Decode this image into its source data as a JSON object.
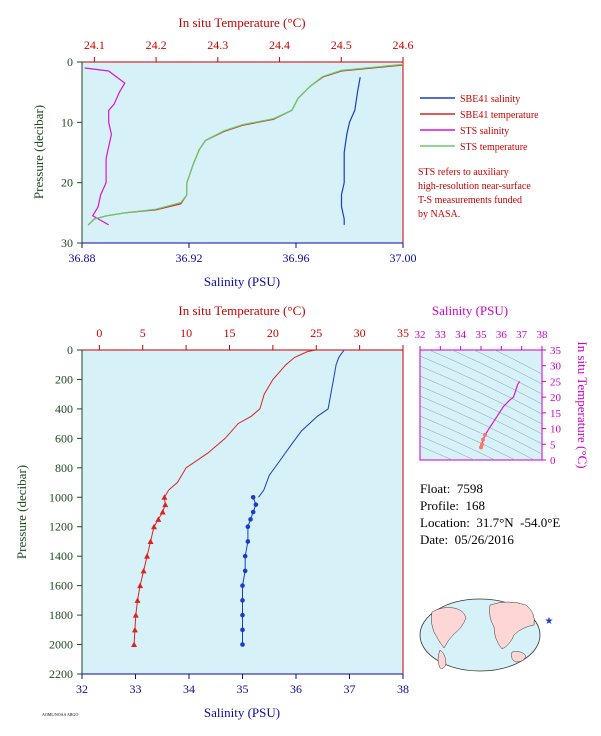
{
  "colors": {
    "plot_bg": "#d6f1f8",
    "temp_axis": "#cc0000",
    "sal_axis": "#0a0aa0",
    "pressure_label": "#1e4a1e",
    "ts_axis": "#cc00cc",
    "sbe_sal": "#1c3cc8",
    "sbe_temp": "#dd2222",
    "sts_sal": "#dd11dd",
    "sts_temp": "#66cc66"
  },
  "top": {
    "temp_title": "In situ Temperature (°C)",
    "sal_title": "Salinity (PSU)",
    "pressure_title": "Pressure (decibar)",
    "temp_ticks": [
      "24.1",
      "24.2",
      "24.3",
      "24.4",
      "24.5",
      "24.6"
    ],
    "sal_ticks": [
      "36.88",
      "36.92",
      "36.96",
      "37.00"
    ],
    "pressure_ticks": [
      "0",
      "10",
      "20",
      "30"
    ],
    "legend": [
      "SBE41 salinity",
      "SBE41 temperature",
      "STS salinity",
      "STS temperature"
    ],
    "note": [
      "STS refers to auxiliary",
      "high-resolution near-surface",
      "T-S measurements funded",
      "by NASA."
    ]
  },
  "bottom": {
    "temp_title": "In situ Temperature (°C)",
    "sal_title": "Salinity (PSU)",
    "pressure_title": "Pressure (decibar)",
    "temp_ticks": [
      "0",
      "5",
      "10",
      "15",
      "20",
      "25",
      "30",
      "35"
    ],
    "sal_ticks": [
      "32",
      "33",
      "34",
      "35",
      "36",
      "37",
      "38"
    ],
    "pressure_ticks": [
      "0",
      "200",
      "400",
      "600",
      "800",
      "1000",
      "1200",
      "1400",
      "1600",
      "1800",
      "2000",
      "2200"
    ]
  },
  "ts_inset": {
    "sal_title": "Salinity (PSU)",
    "temp_title": "In situ Temperature (°C)",
    "sal_ticks": [
      "32",
      "33",
      "34",
      "35",
      "36",
      "37",
      "38"
    ],
    "temp_ticks": [
      "0",
      "5",
      "10",
      "15",
      "20",
      "25",
      "30",
      "35"
    ]
  },
  "info": {
    "float": "Float:  7598",
    "profile": "Profile:  168",
    "location": "Location:  31.7°N  -54.0°E",
    "date": "Date:  05/26/2016"
  },
  "footer_tiny": "AOML/NOAA ARGO",
  "chart_data": [
    {
      "type": "line",
      "title": "",
      "ylabel": "Pressure (decibar)",
      "xlabel_top": "In situ Temperature (°C)",
      "xlabel_bottom": "Salinity (PSU)",
      "ylim": [
        30,
        0
      ],
      "temp_lim": [
        24.08,
        24.6
      ],
      "sal_lim": [
        36.88,
        37.0
      ],
      "series": [
        {
          "name": "SBE41 salinity",
          "axis": "salinity",
          "points": [
            [
              36.984,
              2.5
            ],
            [
              36.983,
              5
            ],
            [
              36.982,
              8
            ],
            [
              36.98,
              10
            ],
            [
              36.979,
              12
            ],
            [
              36.978,
              15
            ],
            [
              36.978,
              18
            ],
            [
              36.978,
              20
            ],
            [
              36.977,
              22
            ],
            [
              36.977,
              24
            ],
            [
              36.978,
              26
            ],
            [
              36.978,
              27
            ]
          ]
        },
        {
          "name": "SBE41 temperature",
          "axis": "temperature",
          "points": [
            [
              24.6,
              0.5
            ],
            [
              24.5,
              1.5
            ],
            [
              24.47,
              2.5
            ],
            [
              24.45,
              4
            ],
            [
              24.43,
              6
            ],
            [
              24.42,
              8
            ],
            [
              24.39,
              9.5
            ],
            [
              24.34,
              10.5
            ],
            [
              24.31,
              11.5
            ],
            [
              24.28,
              13
            ],
            [
              24.27,
              14.5
            ],
            [
              24.26,
              17
            ],
            [
              24.25,
              20
            ],
            [
              24.25,
              22
            ],
            [
              24.24,
              23.5
            ],
            [
              24.2,
              24.5
            ],
            [
              24.15,
              25
            ],
            [
              24.12,
              25.5
            ],
            [
              24.1,
              26
            ],
            [
              24.09,
              27
            ]
          ]
        },
        {
          "name": "STS salinity",
          "axis": "salinity",
          "points": [
            [
              36.881,
              1
            ],
            [
              36.89,
              1.5
            ],
            [
              36.893,
              2.5
            ],
            [
              36.896,
              3.5
            ],
            [
              36.894,
              5
            ],
            [
              36.892,
              7
            ],
            [
              36.89,
              8
            ],
            [
              36.89,
              10
            ],
            [
              36.891,
              12
            ],
            [
              36.89,
              14
            ],
            [
              36.889,
              16
            ],
            [
              36.889,
              18
            ],
            [
              36.889,
              20
            ],
            [
              36.887,
              22
            ],
            [
              36.886,
              24
            ],
            [
              36.884,
              25.5
            ],
            [
              36.886,
              26
            ],
            [
              36.888,
              26.5
            ],
            [
              36.89,
              27
            ]
          ]
        },
        {
          "name": "STS temperature",
          "axis": "temperature",
          "points": [
            [
              24.6,
              0.4
            ],
            [
              24.5,
              1.4
            ],
            [
              24.47,
              2.4
            ],
            [
              24.45,
              4
            ],
            [
              24.43,
              6
            ],
            [
              24.42,
              8
            ],
            [
              24.39,
              9.4
            ],
            [
              24.34,
              10.4
            ],
            [
              24.31,
              11.4
            ],
            [
              24.28,
              13
            ],
            [
              24.27,
              14.5
            ],
            [
              24.26,
              17
            ],
            [
              24.25,
              20
            ],
            [
              24.25,
              22
            ],
            [
              24.24,
              23.3
            ],
            [
              24.2,
              24.4
            ],
            [
              24.15,
              25
            ],
            [
              24.12,
              25.5
            ],
            [
              24.1,
              26
            ],
            [
              24.09,
              27
            ]
          ]
        }
      ]
    },
    {
      "type": "line",
      "title": "",
      "ylabel": "Pressure (decibar)",
      "xlabel_top": "In situ Temperature (°C)",
      "xlabel_bottom": "Salinity (PSU)",
      "ylim": [
        2200,
        0
      ],
      "temp_lim": [
        -2,
        35
      ],
      "sal_lim": [
        32,
        38
      ],
      "series": [
        {
          "name": "SBE41 temperature",
          "axis": "temperature",
          "points": [
            [
              25,
              0
            ],
            [
              24,
              10
            ],
            [
              22.5,
              50
            ],
            [
              21.5,
              100
            ],
            [
              20,
              200
            ],
            [
              19,
              300
            ],
            [
              18.5,
              400
            ],
            [
              17.5,
              450
            ],
            [
              16,
              500
            ],
            [
              14.5,
              600
            ],
            [
              12.5,
              700
            ],
            [
              10,
              800
            ],
            [
              9,
              900
            ],
            [
              8,
              950
            ],
            [
              7.5,
              1000
            ]
          ],
          "markers": [
            [
              7.5,
              1000
            ],
            [
              7.6,
              1050
            ],
            [
              7.3,
              1100
            ],
            [
              6.8,
              1150
            ],
            [
              6.3,
              1200
            ],
            [
              5.9,
              1300
            ],
            [
              5.5,
              1400
            ],
            [
              5.1,
              1500
            ],
            [
              4.7,
              1600
            ],
            [
              4.4,
              1700
            ],
            [
              4.2,
              1800
            ],
            [
              4.1,
              1900
            ],
            [
              4.0,
              2000
            ]
          ]
        },
        {
          "name": "SBE41 salinity",
          "axis": "salinity",
          "points": [
            [
              36.9,
              0
            ],
            [
              36.8,
              50
            ],
            [
              36.75,
              100
            ],
            [
              36.7,
              200
            ],
            [
              36.65,
              300
            ],
            [
              36.6,
              400
            ],
            [
              36.4,
              450
            ],
            [
              36.1,
              550
            ],
            [
              35.9,
              650
            ],
            [
              35.7,
              750
            ],
            [
              35.5,
              850
            ],
            [
              35.4,
              950
            ],
            [
              35.3,
              1000
            ]
          ],
          "markers": [
            [
              35.2,
              1000
            ],
            [
              35.25,
              1050
            ],
            [
              35.2,
              1100
            ],
            [
              35.15,
              1150
            ],
            [
              35.1,
              1200
            ],
            [
              35.1,
              1300
            ],
            [
              35.05,
              1400
            ],
            [
              35.05,
              1500
            ],
            [
              35.0,
              1600
            ],
            [
              35.0,
              1700
            ],
            [
              35.0,
              1800
            ],
            [
              35.0,
              1900
            ],
            [
              35.0,
              2000
            ]
          ]
        }
      ]
    },
    {
      "type": "scatter",
      "title": "",
      "xlabel": "Salinity (PSU)",
      "ylabel": "In situ Temperature (°C)",
      "xlim": [
        32,
        38
      ],
      "ylim": [
        0,
        35
      ],
      "series": [
        {
          "name": "",
          "points": [
            [
              35.0,
              4.0
            ],
            [
              35.05,
              5
            ],
            [
              35.1,
              6.5
            ],
            [
              35.2,
              8
            ],
            [
              35.4,
              10
            ],
            [
              35.6,
              12
            ],
            [
              35.9,
              15
            ],
            [
              36.1,
              17
            ],
            [
              36.4,
              19
            ],
            [
              36.6,
              20
            ],
            [
              36.7,
              22
            ],
            [
              36.8,
              24
            ],
            [
              36.9,
              25
            ]
          ]
        }
      ]
    }
  ]
}
